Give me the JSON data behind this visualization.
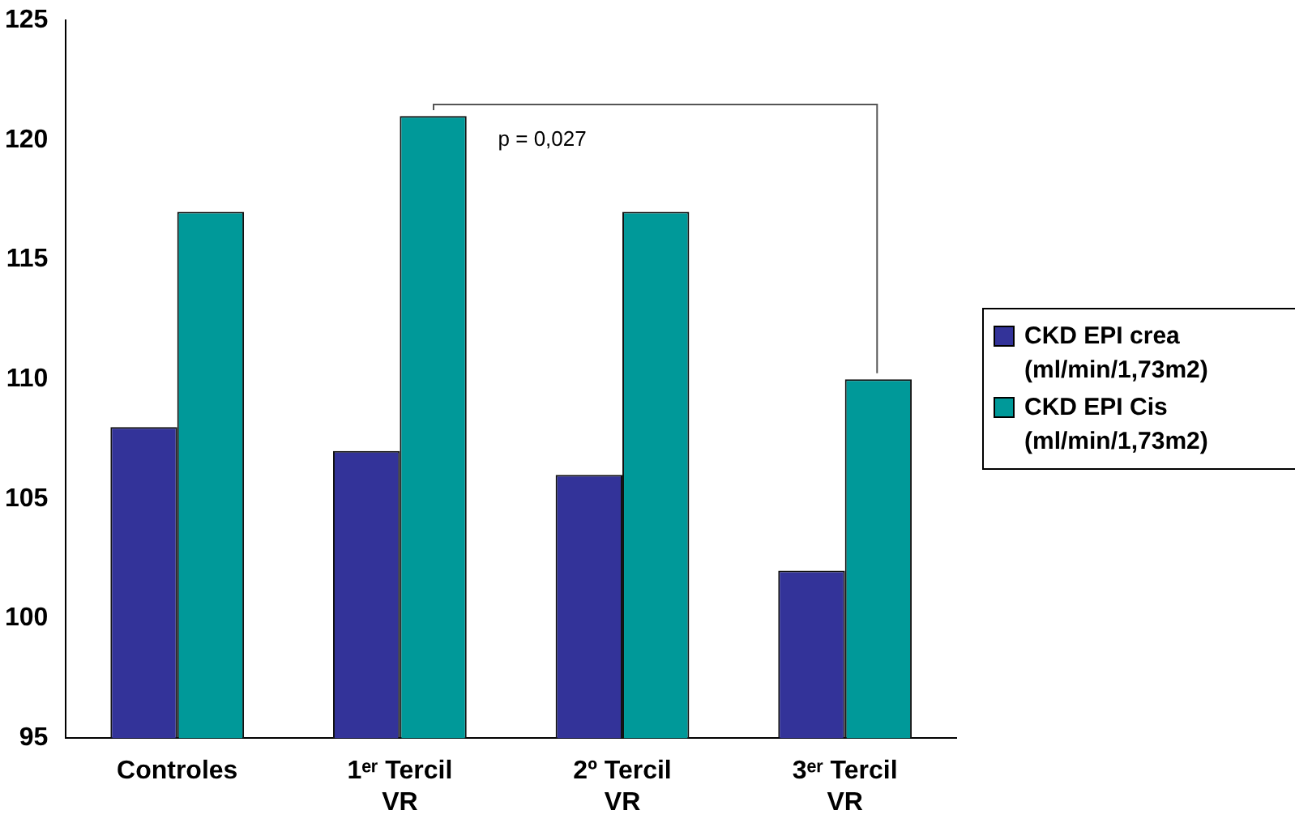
{
  "chart_data": {
    "type": "bar",
    "categories": [
      "Controles",
      "1ᵉʳ Tercil VR",
      "2º Tercil VR",
      "3ᵉʳ Tercil VR"
    ],
    "series": [
      {
        "name": "CKD EPI crea (ml/min/1,73m2)",
        "color": "#333399",
        "values": [
          108,
          107,
          106,
          102
        ]
      },
      {
        "name": "CKD EPI Cis (ml/min/1,73m2)",
        "color": "#009999",
        "values": [
          117,
          121,
          117,
          110
        ]
      }
    ],
    "ylim": [
      95,
      125
    ],
    "yticks": [
      95,
      100,
      105,
      110,
      115,
      120,
      125
    ],
    "grid": false,
    "legend": "right",
    "annotations": [
      "p = 0,027"
    ]
  }
}
